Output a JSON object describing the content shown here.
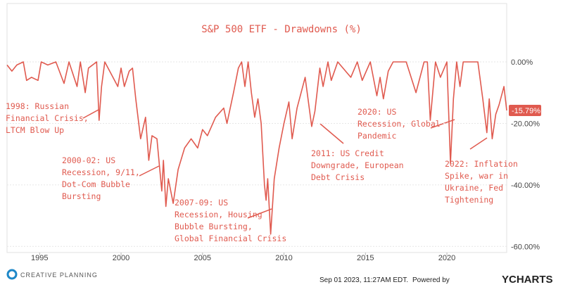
{
  "chart_data": {
    "type": "line",
    "title": "S&P 500 ETF - Drawdowns (%)",
    "color": "#e05a4f",
    "x": [
      1993.0,
      1993.3,
      1993.6,
      1994.0,
      1994.2,
      1994.5,
      1994.9,
      1995.1,
      1995.5,
      1996.0,
      1996.5,
      1996.8,
      1997.3,
      1997.5,
      1997.8,
      1998.0,
      1998.5,
      1998.65,
      1998.8,
      1999.0,
      1999.5,
      1999.8,
      2000.0,
      2000.2,
      2000.5,
      2000.7,
      2000.9,
      2001.2,
      2001.5,
      2001.7,
      2001.9,
      2002.2,
      2002.5,
      2002.6,
      2002.75,
      2002.9,
      2003.2,
      2003.5,
      2003.9,
      2004.3,
      2004.7,
      2005.0,
      2005.3,
      2005.8,
      2006.3,
      2006.5,
      2006.9,
      2007.2,
      2007.4,
      2007.6,
      2007.8,
      2008.0,
      2008.2,
      2008.4,
      2008.6,
      2008.8,
      2008.9,
      2009.0,
      2009.18,
      2009.4,
      2009.7,
      2010.0,
      2010.3,
      2010.5,
      2010.8,
      2011.1,
      2011.3,
      2011.7,
      2011.9,
      2012.2,
      2012.4,
      2012.7,
      2012.9,
      2013.3,
      2014.1,
      2014.5,
      2014.8,
      2015.3,
      2015.7,
      2015.9,
      2016.1,
      2016.4,
      2016.7,
      2017.5,
      2018.1,
      2018.6,
      2018.8,
      2018.98,
      2019.3,
      2019.6,
      2020.0,
      2020.22,
      2020.4,
      2020.6,
      2020.8,
      2021.0,
      2021.9,
      2022.2,
      2022.45,
      2022.6,
      2022.78,
      2023.0,
      2023.2,
      2023.5,
      2023.67
    ],
    "values": [
      -1,
      -3,
      -1,
      0,
      -6,
      -5,
      -6,
      0,
      -1,
      0,
      -7,
      0,
      -8,
      0,
      -10,
      -2,
      0,
      -19,
      -8,
      0,
      -5,
      -8,
      -2,
      -8,
      -3,
      -2,
      -12,
      -25,
      -18,
      -32,
      -24,
      -25,
      -42,
      -32,
      -47,
      -38,
      -46,
      -35,
      -28,
      -25,
      -28,
      -22,
      -24,
      -18,
      -15,
      -20,
      -10,
      -2,
      0,
      -8,
      0,
      -10,
      -18,
      -12,
      -20,
      -40,
      -45,
      -38,
      -56,
      -38,
      -28,
      -20,
      -13,
      -25,
      -15,
      -9,
      -5,
      -21,
      -16,
      -2,
      -8,
      0,
      -6,
      0,
      -5,
      0,
      -6,
      0,
      -11,
      -5,
      -12,
      -3,
      0,
      0,
      -10,
      0,
      0,
      -19,
      0,
      -5,
      0,
      -33,
      -12,
      0,
      -8,
      0,
      0,
      -12,
      -23,
      -12,
      -25,
      -17,
      -14,
      -8,
      -15.79
    ],
    "last_value_label": "-15.79%",
    "xlim": [
      1993.0,
      2023.67
    ],
    "xticks": [
      1995,
      2000,
      2005,
      2010,
      2015,
      2020
    ],
    "ylim": [
      -62,
      19
    ],
    "yticks": [
      {
        "value": 0,
        "label": "0.00%"
      },
      {
        "value": -20,
        "label": "-20.00%"
      },
      {
        "value": -40,
        "label": "-40.00%"
      },
      {
        "value": -60,
        "label": "-60.00%"
      }
    ],
    "grid": true,
    "annotations": [
      {
        "lines": [
          "1998: Russian",
          "Financial Crisis,",
          "LTCM Blow Up"
        ]
      },
      {
        "lines": [
          "2000-02: US",
          "Recession, 9/11,",
          "Dot-Com Bubble",
          "Bursting"
        ]
      },
      {
        "lines": [
          "2007-09: US",
          "Recession, Housing",
          "Bubble Bursting,",
          "Global Financial Crisis"
        ]
      },
      {
        "lines": [
          "2011: US Credit",
          "Downgrade, European",
          "Debt Crisis"
        ]
      },
      {
        "lines": [
          "2020: US",
          "Recession, Global",
          "Pandemic"
        ]
      },
      {
        "lines": [
          "2022: Inflation",
          "Spike, war in",
          "Ukraine, Fed",
          "Tightening"
        ]
      }
    ]
  },
  "footer": {
    "brand": "CREATIVE PLANNING",
    "timestamp": "Sep 01 2023, 11:27AM EDT.",
    "powered": "Powered by",
    "provider": "YCHARTS"
  }
}
